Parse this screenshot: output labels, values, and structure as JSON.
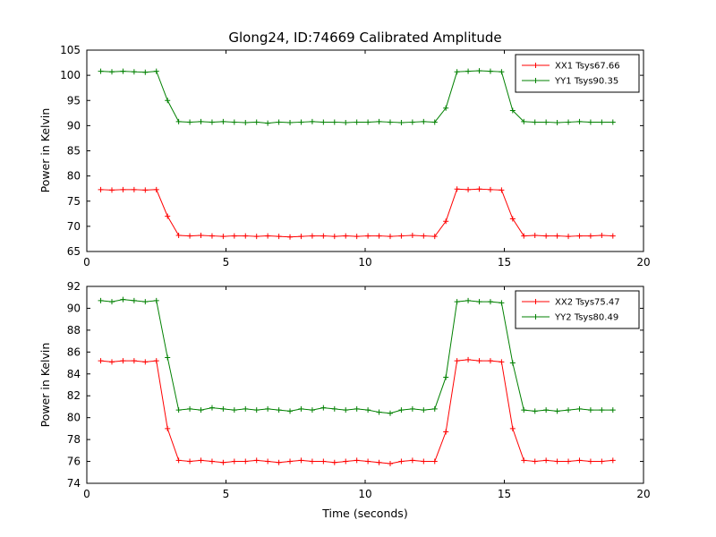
{
  "title": "Glong24, ID:74669 Calibrated Amplitude",
  "xlabel": "Time (seconds)",
  "ylabel": "Power in Kelvin",
  "colors": {
    "series_red": "#ff0000",
    "series_green": "#008000",
    "axes": "#000000",
    "background": "#ffffff"
  },
  "chart_data": [
    {
      "type": "line",
      "title": "Glong24, ID:74669 Calibrated Amplitude",
      "xlabel": "",
      "ylabel": "Power in Kelvin",
      "xlim": [
        0,
        20
      ],
      "ylim": [
        65,
        105
      ],
      "xticks": [
        0,
        5,
        10,
        15,
        20
      ],
      "yticks": [
        65,
        70,
        75,
        80,
        85,
        90,
        95,
        100,
        105
      ],
      "grid": false,
      "legend_position": "upper right",
      "x": [
        0.5,
        0.9,
        1.3,
        1.7,
        2.1,
        2.5,
        2.9,
        3.3,
        3.7,
        4.1,
        4.5,
        4.9,
        5.3,
        5.7,
        6.1,
        6.5,
        6.9,
        7.3,
        7.7,
        8.1,
        8.5,
        8.9,
        9.3,
        9.7,
        10.1,
        10.5,
        10.9,
        11.3,
        11.7,
        12.1,
        12.5,
        12.9,
        13.3,
        13.7,
        14.1,
        14.5,
        14.9,
        15.3,
        15.7,
        16.1,
        16.5,
        16.9,
        17.3,
        17.7,
        18.1,
        18.5,
        18.9
      ],
      "series": [
        {
          "name": "XX1 Tsys67.66",
          "color": "#ff0000",
          "marker": "+",
          "values": [
            77.3,
            77.2,
            77.3,
            77.3,
            77.2,
            77.3,
            72.0,
            68.2,
            68.1,
            68.2,
            68.1,
            68.0,
            68.1,
            68.1,
            68.0,
            68.1,
            68.0,
            67.9,
            68.0,
            68.1,
            68.1,
            68.0,
            68.1,
            68.0,
            68.1,
            68.1,
            68.0,
            68.1,
            68.2,
            68.1,
            68.0,
            71.0,
            77.4,
            77.3,
            77.4,
            77.3,
            77.2,
            71.5,
            68.1,
            68.2,
            68.1,
            68.1,
            68.0,
            68.1,
            68.1,
            68.2,
            68.1
          ]
        },
        {
          "name": "YY1 Tsys90.35",
          "color": "#008000",
          "marker": "+",
          "values": [
            100.8,
            100.7,
            100.8,
            100.7,
            100.6,
            100.8,
            95.0,
            90.8,
            90.7,
            90.8,
            90.7,
            90.8,
            90.7,
            90.6,
            90.7,
            90.5,
            90.7,
            90.6,
            90.7,
            90.8,
            90.7,
            90.7,
            90.6,
            90.7,
            90.7,
            90.8,
            90.7,
            90.6,
            90.7,
            90.8,
            90.7,
            93.5,
            100.7,
            100.8,
            100.9,
            100.8,
            100.7,
            93.0,
            90.8,
            90.7,
            90.7,
            90.6,
            90.7,
            90.8,
            90.7,
            90.7,
            90.7
          ]
        }
      ]
    },
    {
      "type": "line",
      "title": "",
      "xlabel": "Time (seconds)",
      "ylabel": "Power in Kelvin",
      "xlim": [
        0,
        20
      ],
      "ylim": [
        74,
        92
      ],
      "xticks": [
        0,
        5,
        10,
        15,
        20
      ],
      "yticks": [
        74,
        76,
        78,
        80,
        82,
        84,
        86,
        88,
        90,
        92
      ],
      "grid": false,
      "legend_position": "upper right",
      "x": [
        0.5,
        0.9,
        1.3,
        1.7,
        2.1,
        2.5,
        2.9,
        3.3,
        3.7,
        4.1,
        4.5,
        4.9,
        5.3,
        5.7,
        6.1,
        6.5,
        6.9,
        7.3,
        7.7,
        8.1,
        8.5,
        8.9,
        9.3,
        9.7,
        10.1,
        10.5,
        10.9,
        11.3,
        11.7,
        12.1,
        12.5,
        12.9,
        13.3,
        13.7,
        14.1,
        14.5,
        14.9,
        15.3,
        15.7,
        16.1,
        16.5,
        16.9,
        17.3,
        17.7,
        18.1,
        18.5,
        18.9
      ],
      "series": [
        {
          "name": "XX2 Tsys75.47",
          "color": "#ff0000",
          "marker": "+",
          "values": [
            85.2,
            85.1,
            85.2,
            85.2,
            85.1,
            85.2,
            79.0,
            76.1,
            76.0,
            76.1,
            76.0,
            75.9,
            76.0,
            76.0,
            76.1,
            76.0,
            75.9,
            76.0,
            76.1,
            76.0,
            76.0,
            75.9,
            76.0,
            76.1,
            76.0,
            75.9,
            75.8,
            76.0,
            76.1,
            76.0,
            76.0,
            78.7,
            85.2,
            85.3,
            85.2,
            85.2,
            85.1,
            79.0,
            76.1,
            76.0,
            76.1,
            76.0,
            76.0,
            76.1,
            76.0,
            76.0,
            76.1
          ]
        },
        {
          "name": "YY2 Tsys80.49",
          "color": "#008000",
          "marker": "+",
          "values": [
            90.7,
            90.6,
            90.8,
            90.7,
            90.6,
            90.7,
            85.5,
            80.7,
            80.8,
            80.7,
            80.9,
            80.8,
            80.7,
            80.8,
            80.7,
            80.8,
            80.7,
            80.6,
            80.8,
            80.7,
            80.9,
            80.8,
            80.7,
            80.8,
            80.7,
            80.5,
            80.4,
            80.7,
            80.8,
            80.7,
            80.8,
            83.7,
            90.6,
            90.7,
            90.6,
            90.6,
            90.5,
            85.0,
            80.7,
            80.6,
            80.7,
            80.6,
            80.7,
            80.8,
            80.7,
            80.7,
            80.7
          ]
        }
      ]
    }
  ]
}
